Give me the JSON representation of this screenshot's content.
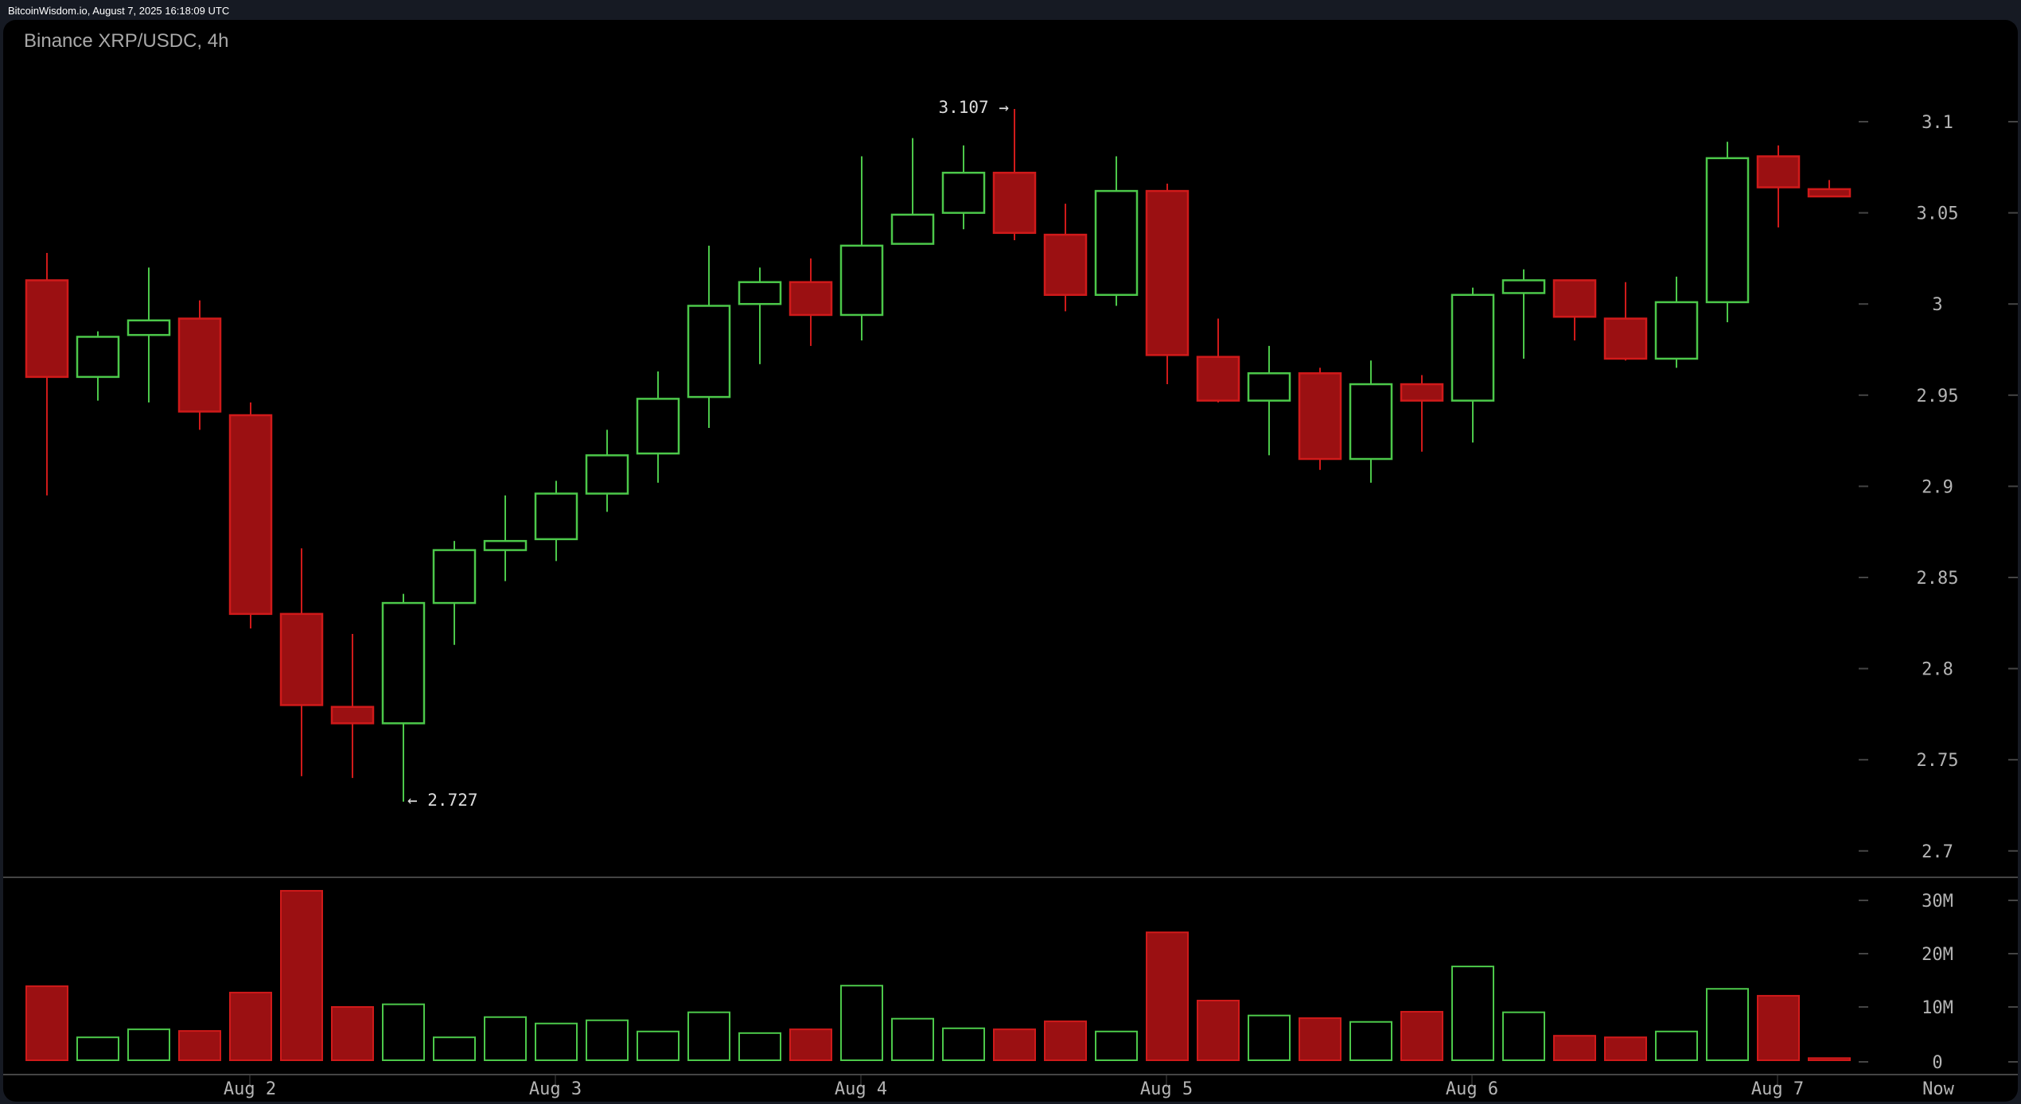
{
  "topbar": {
    "source_stamp": "BitcoinWisdom.io, August 7, 2025 16:18:09 UTC"
  },
  "header": {
    "title": "Binance XRP/USDC, 4h"
  },
  "colors": {
    "background": "#161a23",
    "panel": "#000000",
    "up_border": "#4cc84a",
    "down_fill": "#9b1012",
    "down_border": "#d01a1a",
    "axis_text": "#b4b4b4",
    "annotation_text": "#dddddd",
    "grid_tick": "#444444"
  },
  "annotations": {
    "high_label": "3.107 →",
    "low_label": "← 2.727"
  },
  "chart_data": {
    "type": "candlestick",
    "title": "Binance XRP/USDC, 4h",
    "xlabel": "",
    "ylabel": "",
    "price_axis": {
      "ticks": [
        "3.1",
        "3.05",
        "3",
        "2.95",
        "2.9",
        "2.85",
        "2.8",
        "2.75",
        "2.7"
      ],
      "ylim": [
        2.7,
        3.1
      ]
    },
    "volume_axis": {
      "ticks": [
        "30M",
        "20M",
        "10M",
        "0"
      ],
      "ylim": [
        0,
        30
      ]
    },
    "x_axis": {
      "labels": [
        {
          "label": "Aug 2",
          "candle_index": 2
        },
        {
          "label": "Aug 3",
          "candle_index": 8
        },
        {
          "label": "Aug 4",
          "candle_index": 14
        },
        {
          "label": "Aug 5",
          "candle_index": 20
        },
        {
          "label": "Aug 6",
          "candle_index": 26
        },
        {
          "label": "Aug 7",
          "candle_index": 32
        }
      ],
      "now_label": "Now"
    },
    "high_marker": {
      "value": 3.107,
      "candle_index": 19
    },
    "low_marker": {
      "value": 2.727,
      "candle_index": 7
    },
    "candles": [
      {
        "o": 3.013,
        "h": 3.028,
        "l": 2.895,
        "c": 2.96,
        "v": 13.9
      },
      {
        "o": 2.96,
        "h": 2.985,
        "l": 2.947,
        "c": 2.982,
        "v": 4.3
      },
      {
        "o": 2.983,
        "h": 3.02,
        "l": 2.946,
        "c": 2.991,
        "v": 5.8
      },
      {
        "o": 2.992,
        "h": 3.002,
        "l": 2.931,
        "c": 2.941,
        "v": 5.5
      },
      {
        "o": 2.939,
        "h": 2.946,
        "l": 2.822,
        "c": 2.83,
        "v": 12.7
      },
      {
        "o": 2.83,
        "h": 2.866,
        "l": 2.741,
        "c": 2.78,
        "v": 31.8
      },
      {
        "o": 2.779,
        "h": 2.819,
        "l": 2.74,
        "c": 2.77,
        "v": 10.0
      },
      {
        "o": 2.77,
        "h": 2.841,
        "l": 2.727,
        "c": 2.836,
        "v": 10.5
      },
      {
        "o": 2.836,
        "h": 2.87,
        "l": 2.813,
        "c": 2.865,
        "v": 4.3
      },
      {
        "o": 2.865,
        "h": 2.895,
        "l": 2.848,
        "c": 2.87,
        "v": 8.1
      },
      {
        "o": 2.871,
        "h": 2.903,
        "l": 2.859,
        "c": 2.896,
        "v": 6.9
      },
      {
        "o": 2.896,
        "h": 2.931,
        "l": 2.886,
        "c": 2.917,
        "v": 7.5
      },
      {
        "o": 2.918,
        "h": 2.963,
        "l": 2.902,
        "c": 2.948,
        "v": 5.4
      },
      {
        "o": 2.949,
        "h": 3.032,
        "l": 2.932,
        "c": 2.999,
        "v": 9.0
      },
      {
        "o": 3.0,
        "h": 3.02,
        "l": 2.967,
        "c": 3.012,
        "v": 5.1
      },
      {
        "o": 3.012,
        "h": 3.025,
        "l": 2.977,
        "c": 2.994,
        "v": 5.8
      },
      {
        "o": 2.994,
        "h": 3.081,
        "l": 2.98,
        "c": 3.032,
        "v": 14.0
      },
      {
        "o": 3.033,
        "h": 3.091,
        "l": 3.033,
        "c": 3.049,
        "v": 7.8
      },
      {
        "o": 3.05,
        "h": 3.087,
        "l": 3.041,
        "c": 3.072,
        "v": 6.0
      },
      {
        "o": 3.072,
        "h": 3.107,
        "l": 3.035,
        "c": 3.039,
        "v": 5.8
      },
      {
        "o": 3.038,
        "h": 3.055,
        "l": 2.996,
        "c": 3.005,
        "v": 7.3
      },
      {
        "o": 3.005,
        "h": 3.081,
        "l": 2.999,
        "c": 3.062,
        "v": 5.4
      },
      {
        "o": 3.062,
        "h": 3.066,
        "l": 2.956,
        "c": 2.972,
        "v": 24.0
      },
      {
        "o": 2.971,
        "h": 2.992,
        "l": 2.946,
        "c": 2.947,
        "v": 11.2
      },
      {
        "o": 2.947,
        "h": 2.977,
        "l": 2.917,
        "c": 2.962,
        "v": 8.4
      },
      {
        "o": 2.962,
        "h": 2.965,
        "l": 2.909,
        "c": 2.915,
        "v": 7.9
      },
      {
        "o": 2.915,
        "h": 2.969,
        "l": 2.902,
        "c": 2.956,
        "v": 7.2
      },
      {
        "o": 2.956,
        "h": 2.961,
        "l": 2.919,
        "c": 2.947,
        "v": 9.1
      },
      {
        "o": 2.947,
        "h": 3.009,
        "l": 2.924,
        "c": 3.005,
        "v": 17.6
      },
      {
        "o": 3.006,
        "h": 3.019,
        "l": 2.97,
        "c": 3.013,
        "v": 9.0
      },
      {
        "o": 3.013,
        "h": 3.013,
        "l": 2.98,
        "c": 2.993,
        "v": 4.6
      },
      {
        "o": 2.992,
        "h": 3.012,
        "l": 2.969,
        "c": 2.97,
        "v": 4.3
      },
      {
        "o": 2.97,
        "h": 3.015,
        "l": 2.965,
        "c": 3.001,
        "v": 5.4
      },
      {
        "o": 3.001,
        "h": 3.089,
        "l": 2.99,
        "c": 3.08,
        "v": 13.4
      },
      {
        "o": 3.081,
        "h": 3.087,
        "l": 3.042,
        "c": 3.064,
        "v": 12.1
      },
      {
        "o": 3.063,
        "h": 3.068,
        "l": 3.059,
        "c": 3.059,
        "v": 0.4
      }
    ],
    "grid": false,
    "legend": null
  }
}
